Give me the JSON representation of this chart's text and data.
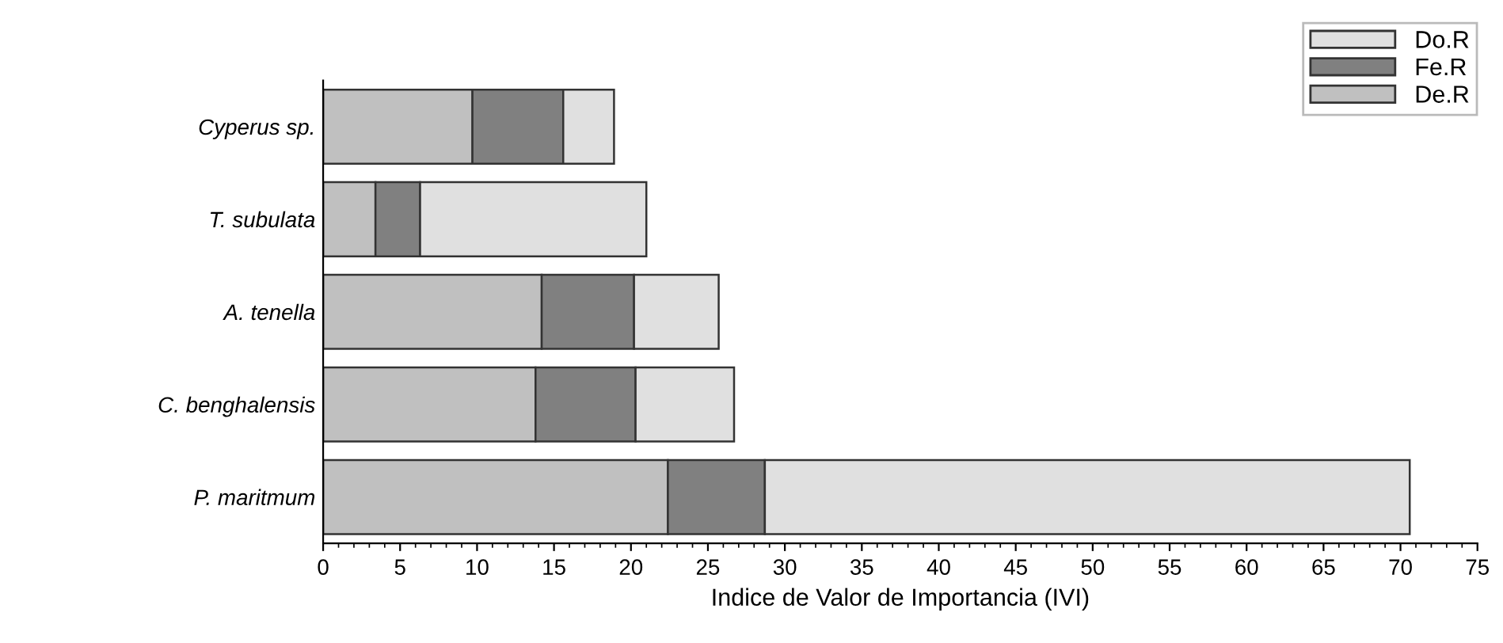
{
  "chart_data": {
    "type": "bar",
    "orientation": "horizontal",
    "stacked": true,
    "xlabel": "Indice de Valor de Importancia (IVI)",
    "categories": [
      "Cyperus sp.",
      "T. subulata",
      "A. tenella",
      "C. benghalensis",
      "P. maritmum"
    ],
    "series": [
      {
        "name": "De.R",
        "color": "#c0c0c0",
        "values": [
          9.7,
          3.4,
          14.2,
          13.8,
          22.4
        ]
      },
      {
        "name": "Fe.R",
        "color": "#808080",
        "values": [
          5.9,
          2.9,
          6.0,
          6.5,
          6.3
        ]
      },
      {
        "name": "Do.R",
        "color": "#e0e0e0",
        "values": [
          3.3,
          14.7,
          5.5,
          6.4,
          41.9
        ]
      }
    ],
    "xlim": [
      0,
      75
    ],
    "xticks": [
      0,
      5,
      10,
      15,
      20,
      25,
      30,
      35,
      40,
      45,
      50,
      55,
      60,
      65,
      70,
      75
    ],
    "legend": "top right",
    "grid": false
  }
}
